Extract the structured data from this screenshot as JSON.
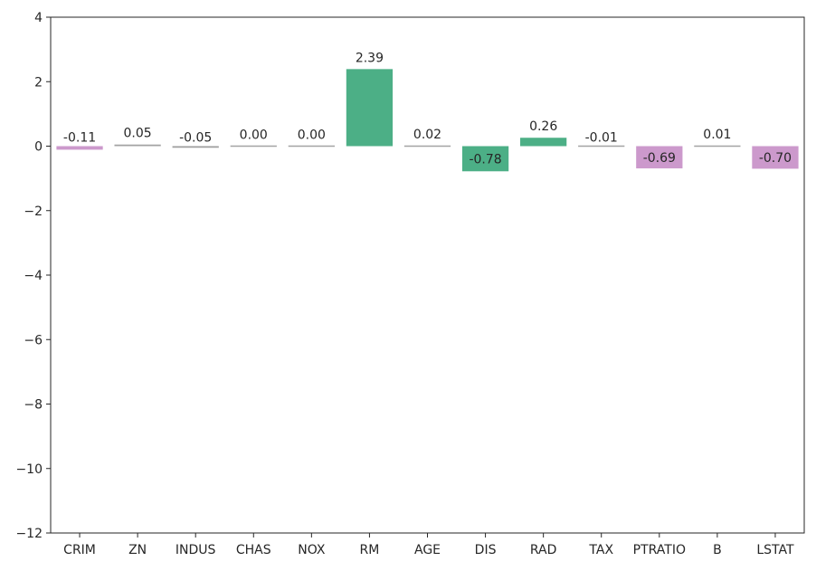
{
  "chart_data": {
    "type": "bar",
    "categories": [
      "CRIM",
      "ZN",
      "INDUS",
      "CHAS",
      "NOX",
      "RM",
      "AGE",
      "DIS",
      "RAD",
      "TAX",
      "PTRATIO",
      "B",
      "LSTAT"
    ],
    "values": [
      -0.11,
      0.05,
      -0.05,
      0.0,
      0.0,
      2.39,
      0.02,
      -0.78,
      0.26,
      -0.01,
      -0.69,
      0.01,
      -0.7
    ],
    "value_labels": [
      "-0.11",
      "0.05",
      "-0.05",
      "0.00",
      "0.00",
      "2.39",
      "0.02",
      "-0.78",
      "0.26",
      "-0.01",
      "-0.69",
      "0.01",
      "-0.70"
    ],
    "colors": [
      "#cc99cc",
      "#a3a3a3",
      "#9e9e9e",
      "#a3a3a3",
      "#a3a3a3",
      "#4caf86",
      "#a3a3a3",
      "#4caf86",
      "#4caf86",
      "#a3a3a3",
      "#cc99cc",
      "#a3a3a3",
      "#cc99cc"
    ],
    "title": "",
    "xlabel": "",
    "ylabel": "",
    "ylim": [
      -12,
      4
    ],
    "yticks": [
      4,
      2,
      0,
      -2,
      -4,
      -6,
      -8,
      -10,
      -12
    ],
    "ytick_labels": [
      "4",
      "2",
      "0",
      "−2",
      "−4",
      "−6",
      "−8",
      "−10",
      "−12"
    ],
    "grid": false,
    "legend": "none"
  }
}
